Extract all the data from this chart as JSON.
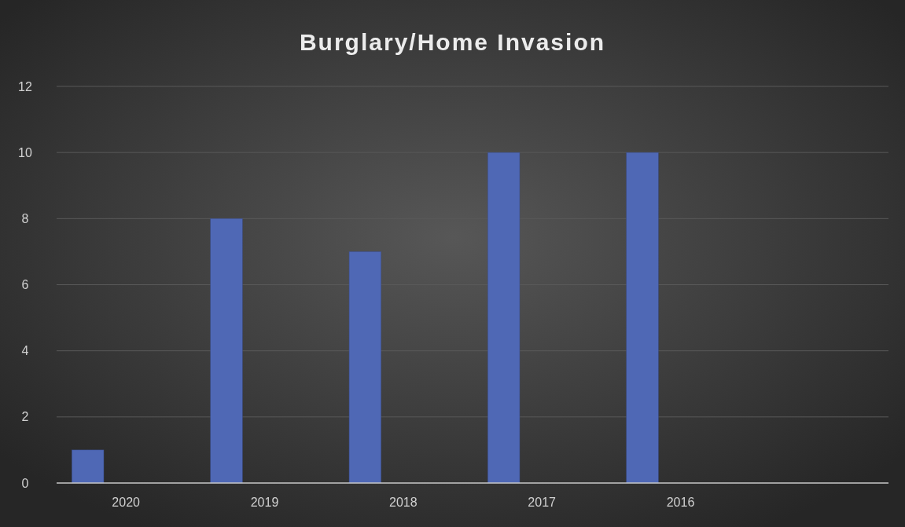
{
  "chart_data": {
    "type": "bar",
    "title": "Burglary/Home Invasion",
    "categories": [
      "2020",
      "2019",
      "2018",
      "2017",
      "2016",
      null
    ],
    "values": [
      1,
      8,
      7,
      10,
      10,
      null
    ],
    "color": "#4f68b5",
    "ylim": [
      0,
      12
    ],
    "yticks": [
      0,
      2,
      4,
      6,
      8,
      10,
      12
    ],
    "grid": "y"
  }
}
